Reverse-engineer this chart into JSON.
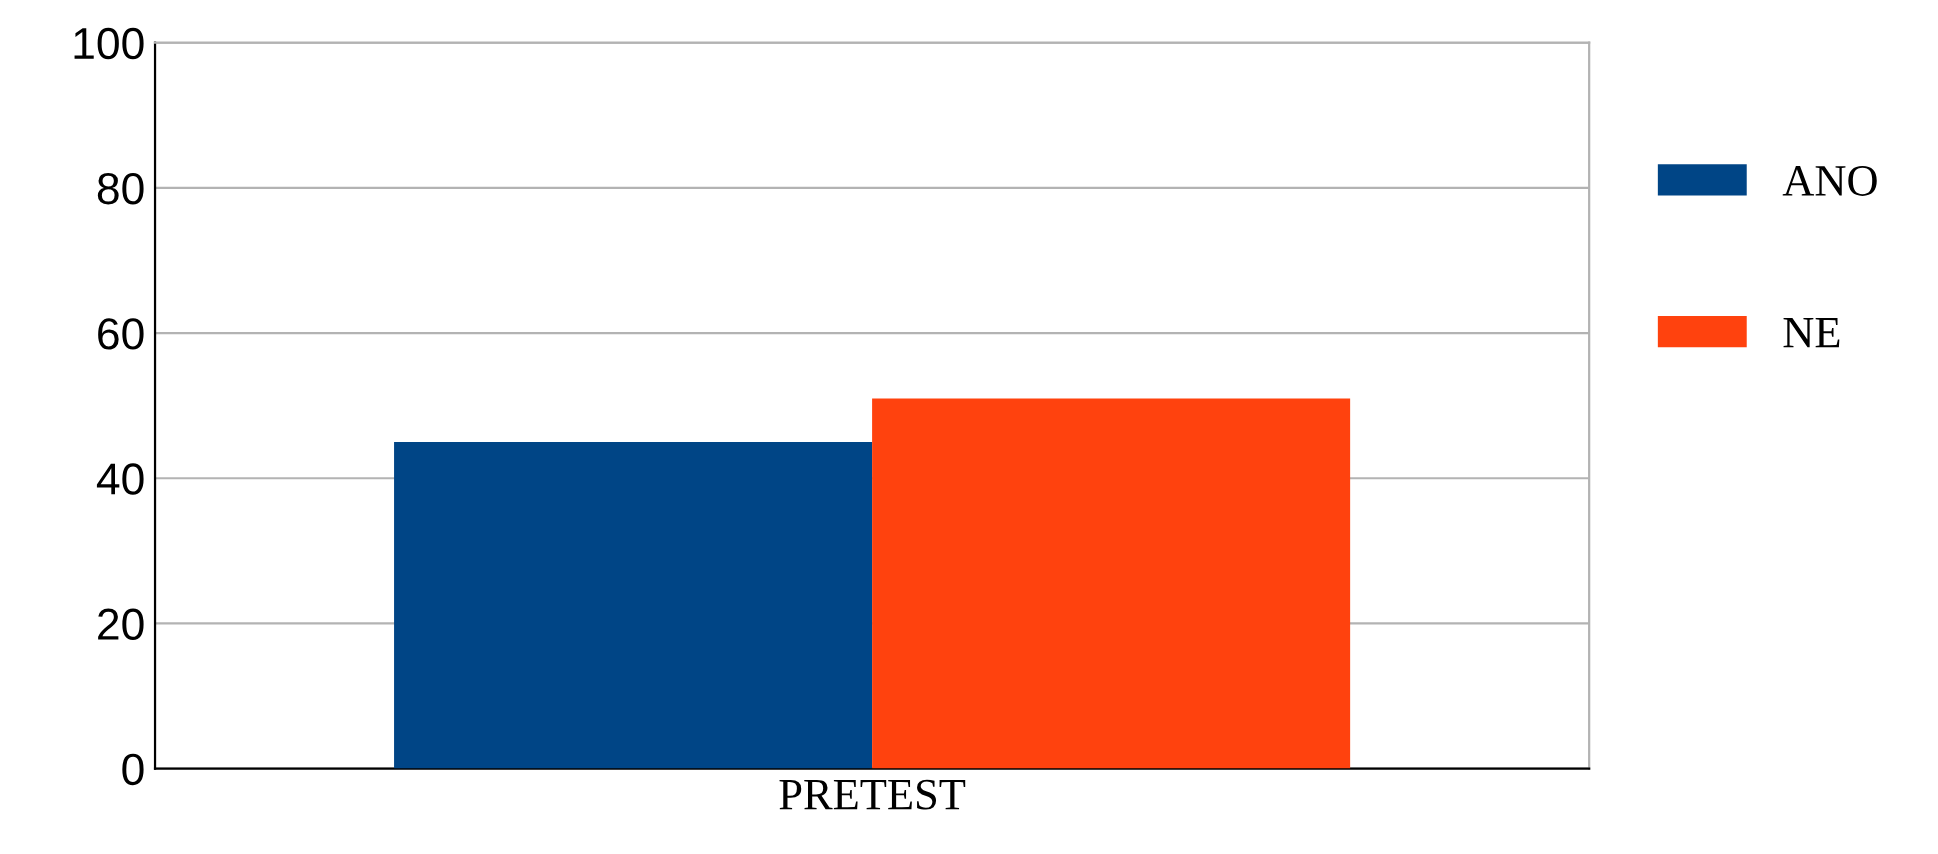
{
  "chart_data": {
    "type": "bar",
    "categories": [
      "PRETEST"
    ],
    "series": [
      {
        "name": "ANO",
        "color": "#004586",
        "values": [
          45
        ]
      },
      {
        "name": "NE",
        "color": "#ff420e",
        "values": [
          51
        ]
      }
    ],
    "ylim": [
      0,
      100
    ],
    "yticks": [
      0,
      20,
      40,
      60,
      80,
      100
    ],
    "grid": "y",
    "legend": "right"
  }
}
